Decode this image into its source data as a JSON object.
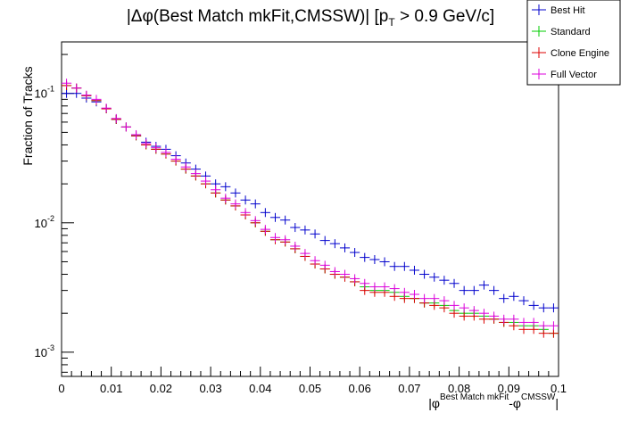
{
  "chart_data": {
    "type": "scatter",
    "title": "|Δφ(Best Match mkFit,CMSSW)| [p_T > 0.9 GeV/c]",
    "title_parts": {
      "pre": "|Δφ(Best Match mkFit,CMSSW)| [p",
      "sub": "T",
      "post": " > 0.9 GeV/c]"
    },
    "ylabel": "Fraction of Tracks",
    "xlabel_parts": {
      "open": "|φ",
      "sup1": "Best Match mkFit",
      "mid": "-φ",
      "sup2": "CMSSW",
      "close": "|"
    },
    "x_range": [
      0,
      0.1
    ],
    "y_range": [
      0.00065,
      0.25
    ],
    "y_scale": "log",
    "grid": false,
    "legend_position": "top-right",
    "x_ticks": [
      "0",
      "0.01",
      "0.02",
      "0.03",
      "0.04",
      "0.05",
      "0.06",
      "0.07",
      "0.08",
      "0.09",
      "0.1"
    ],
    "y_ticks": [
      {
        "base": "10",
        "exp": "-1",
        "value": 0.1
      },
      {
        "base": "10",
        "exp": "-2",
        "value": 0.01
      },
      {
        "base": "10",
        "exp": "-3",
        "value": 0.001
      }
    ],
    "bin_width": 0.002,
    "x": [
      0.001,
      0.003,
      0.005,
      0.007,
      0.009,
      0.011,
      0.013,
      0.015,
      0.017,
      0.019,
      0.021,
      0.023,
      0.025,
      0.027,
      0.029,
      0.031,
      0.033,
      0.035,
      0.037,
      0.039,
      0.041,
      0.043,
      0.045,
      0.047,
      0.049,
      0.051,
      0.053,
      0.055,
      0.057,
      0.059,
      0.061,
      0.063,
      0.065,
      0.067,
      0.069,
      0.071,
      0.073,
      0.075,
      0.077,
      0.079,
      0.081,
      0.083,
      0.085,
      0.087,
      0.089,
      0.091,
      0.093,
      0.095,
      0.097,
      0.099
    ],
    "series": [
      {
        "name": "Best Hit",
        "color": "#0000cc",
        "values": [
          0.1,
          0.1,
          0.092,
          0.086,
          0.076,
          0.063,
          0.055,
          0.047,
          0.042,
          0.039,
          0.037,
          0.033,
          0.029,
          0.026,
          0.023,
          0.02,
          0.019,
          0.017,
          0.015,
          0.014,
          0.012,
          0.011,
          0.0105,
          0.0092,
          0.0088,
          0.0082,
          0.0073,
          0.0069,
          0.0064,
          0.0059,
          0.0054,
          0.0052,
          0.005,
          0.0046,
          0.0046,
          0.0043,
          0.004,
          0.0038,
          0.0036,
          0.0034,
          0.003,
          0.003,
          0.0033,
          0.003,
          0.0026,
          0.0027,
          0.0025,
          0.0023,
          0.0022,
          0.0022
        ]
      },
      {
        "name": "Standard",
        "color": "#00cc00",
        "values": [
          0.115,
          0.11,
          0.096,
          0.088,
          0.076,
          0.063,
          0.055,
          0.047,
          0.04,
          0.037,
          0.034,
          0.03,
          0.026,
          0.023,
          0.02,
          0.017,
          0.015,
          0.0135,
          0.0115,
          0.01,
          0.0086,
          0.0074,
          0.0071,
          0.0063,
          0.0055,
          0.0048,
          0.0044,
          0.004,
          0.0038,
          0.0035,
          0.0032,
          0.003,
          0.003,
          0.0029,
          0.0027,
          0.0026,
          0.0024,
          0.0024,
          0.0023,
          0.0021,
          0.002,
          0.002,
          0.0019,
          0.0018,
          0.0017,
          0.0017,
          0.0016,
          0.0016,
          0.0015,
          0.0014
        ]
      },
      {
        "name": "Clone Engine",
        "color": "#dd0000",
        "values": [
          0.115,
          0.11,
          0.096,
          0.088,
          0.076,
          0.063,
          0.055,
          0.047,
          0.04,
          0.037,
          0.034,
          0.03,
          0.026,
          0.023,
          0.02,
          0.017,
          0.015,
          0.0135,
          0.0115,
          0.01,
          0.0086,
          0.0074,
          0.0071,
          0.0063,
          0.0055,
          0.0048,
          0.0044,
          0.004,
          0.0038,
          0.0035,
          0.003,
          0.0029,
          0.0029,
          0.0027,
          0.0026,
          0.0026,
          0.0024,
          0.0023,
          0.0022,
          0.002,
          0.0019,
          0.0019,
          0.0018,
          0.0018,
          0.0017,
          0.0016,
          0.0015,
          0.0015,
          0.0014,
          0.0014
        ]
      },
      {
        "name": "Full Vector",
        "color": "#dd00dd",
        "values": [
          0.12,
          0.11,
          0.097,
          0.09,
          0.077,
          0.064,
          0.055,
          0.048,
          0.041,
          0.038,
          0.035,
          0.031,
          0.027,
          0.024,
          0.021,
          0.018,
          0.0155,
          0.014,
          0.012,
          0.0104,
          0.0089,
          0.0077,
          0.0074,
          0.0066,
          0.0058,
          0.0051,
          0.0047,
          0.0042,
          0.004,
          0.0037,
          0.0034,
          0.0032,
          0.0032,
          0.0031,
          0.0029,
          0.0028,
          0.0026,
          0.0026,
          0.0025,
          0.0023,
          0.0022,
          0.0021,
          0.002,
          0.0019,
          0.0018,
          0.0018,
          0.0017,
          0.0017,
          0.0016,
          0.0016
        ]
      }
    ]
  }
}
